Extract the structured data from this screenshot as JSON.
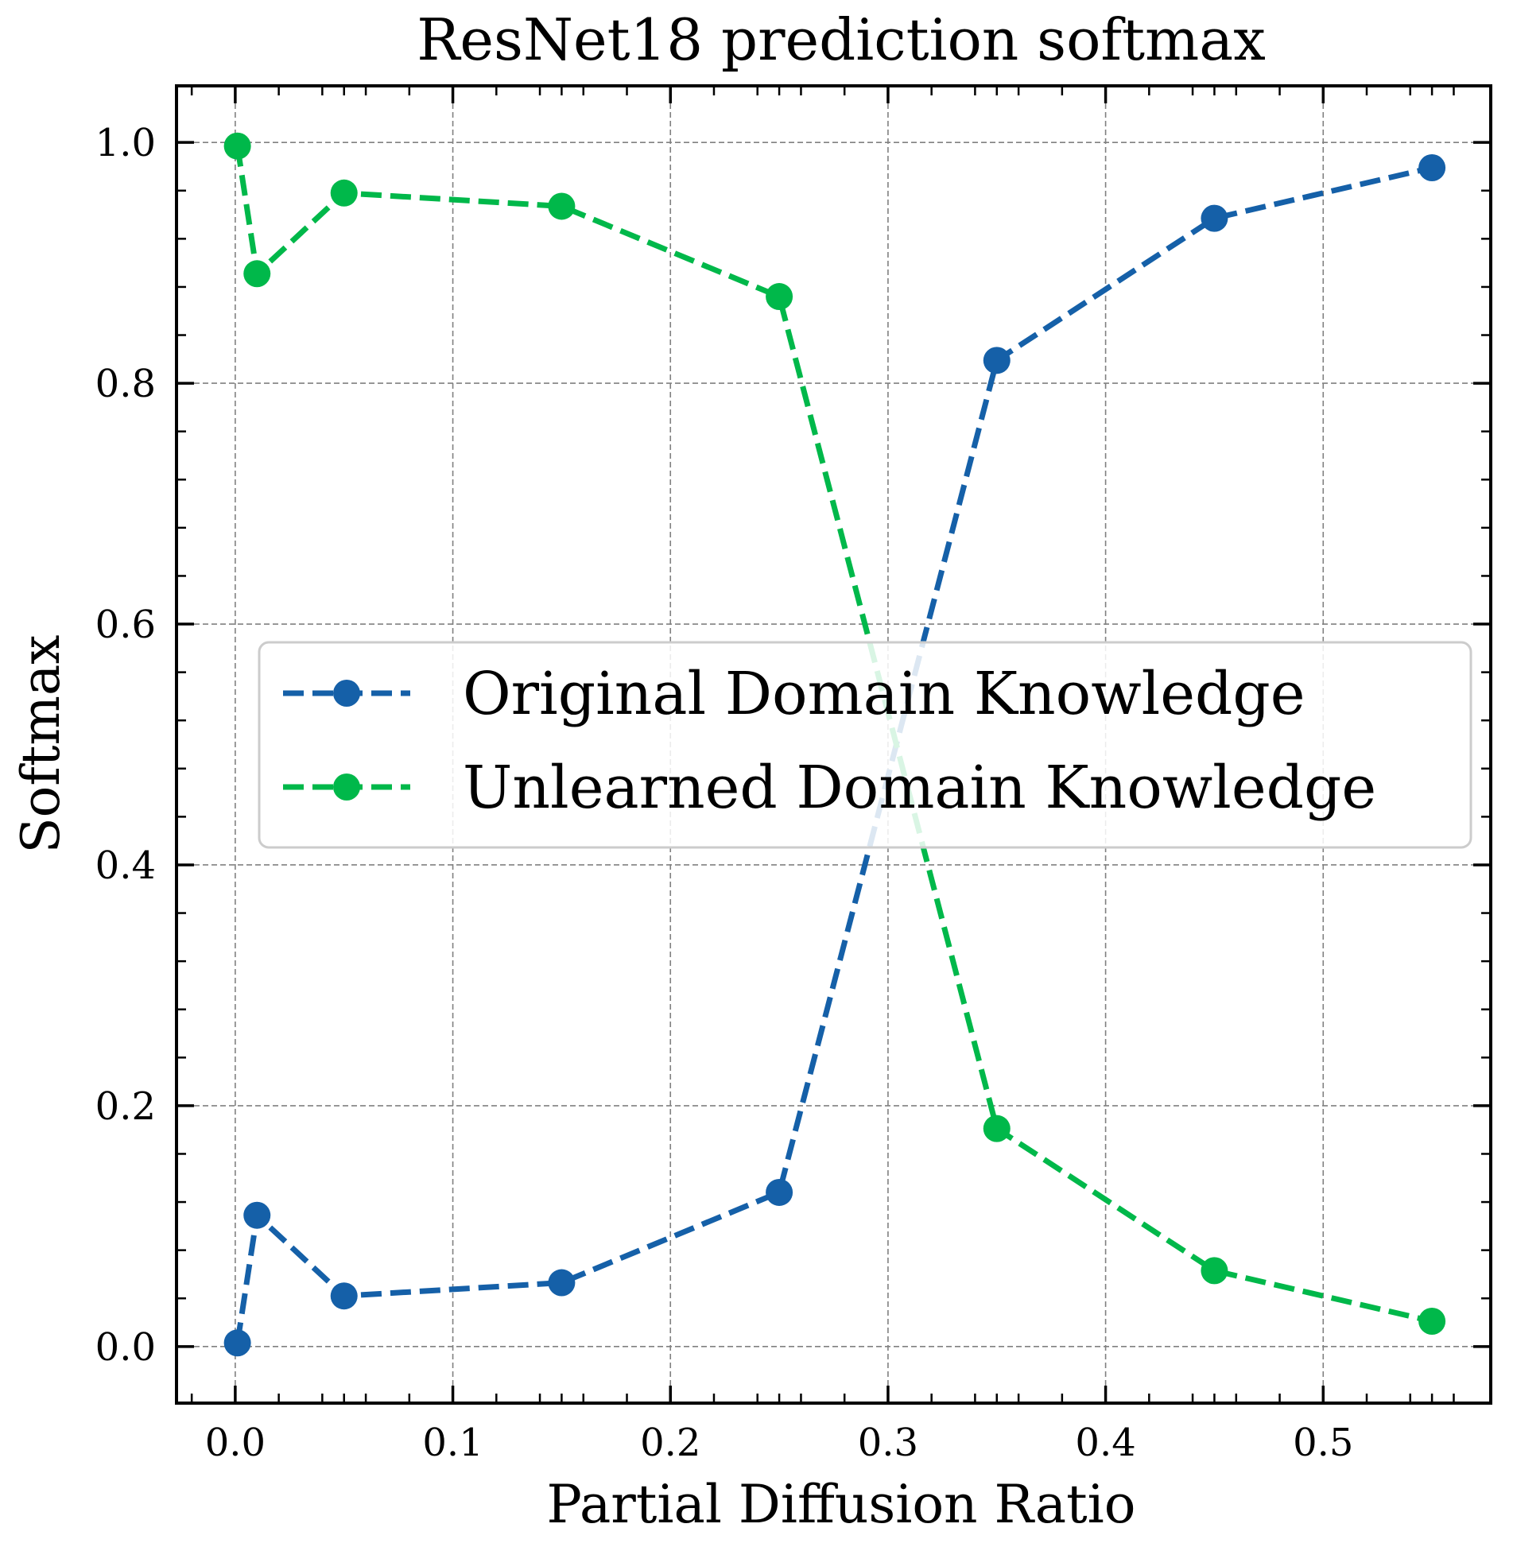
{
  "chart_data": {
    "type": "line",
    "title": "ResNet18 prediction softmax",
    "xlabel": "Partial Diffusion Ratio",
    "ylabel": "Softmax",
    "xlim": [
      -0.027,
      0.577
    ],
    "ylim": [
      -0.047,
      1.047
    ],
    "xticks": [
      0.0,
      0.1,
      0.2,
      0.3,
      0.4,
      0.5
    ],
    "xtick_labels": [
      "0.0",
      "0.1",
      "0.2",
      "0.3",
      "0.4",
      "0.5"
    ],
    "yticks": [
      0.0,
      0.2,
      0.4,
      0.6,
      0.8,
      1.0
    ],
    "ytick_labels": [
      "0.0",
      "0.2",
      "0.4",
      "0.6",
      "0.8",
      "1.0"
    ],
    "grid": true,
    "legend_position": "center-right",
    "x": [
      0.001,
      0.01,
      0.05,
      0.15,
      0.25,
      0.35,
      0.45,
      0.55
    ],
    "series": [
      {
        "name": "Original Domain Knowledge",
        "color": "#1560a8",
        "values": [
          0.003,
          0.109,
          0.042,
          0.053,
          0.128,
          0.819,
          0.937,
          0.979
        ]
      },
      {
        "name": "Unlearned Domain Knowledge",
        "color": "#00b84a",
        "values": [
          0.997,
          0.891,
          0.958,
          0.947,
          0.872,
          0.181,
          0.063,
          0.021
        ]
      }
    ]
  }
}
